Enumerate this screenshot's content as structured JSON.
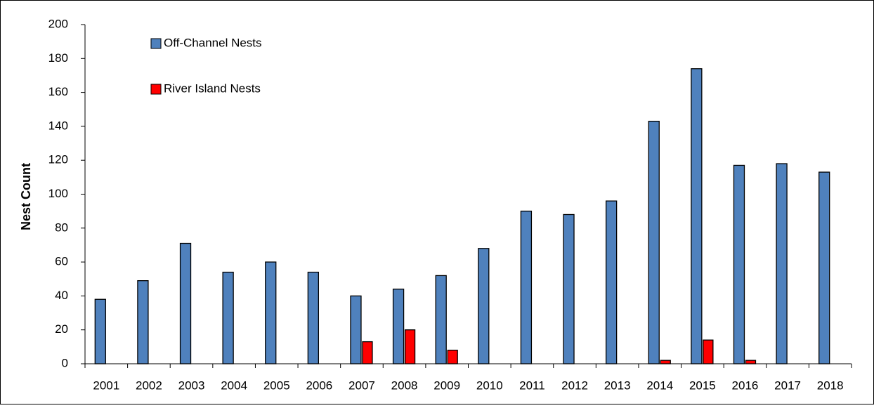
{
  "chart_data": {
    "type": "bar",
    "y_label": "Nest Count",
    "categories": [
      "2001",
      "2002",
      "2003",
      "2004",
      "2005",
      "2006",
      "2007",
      "2008",
      "2009",
      "2010",
      "2011",
      "2012",
      "2013",
      "2014",
      "2015",
      "2016",
      "2017",
      "2018"
    ],
    "series": [
      {
        "name": "Off-Channel Nests",
        "color": "#4f81bd",
        "values": [
          38,
          49,
          71,
          54,
          60,
          54,
          40,
          44,
          52,
          68,
          90,
          88,
          96,
          143,
          174,
          117,
          118,
          113
        ]
      },
      {
        "name": "River Island Nests",
        "color": "#ff0000",
        "values": [
          0,
          0,
          0,
          0,
          0,
          0,
          13,
          20,
          8,
          0,
          0,
          0,
          0,
          2,
          14,
          2,
          0,
          0
        ]
      }
    ],
    "ylim": [
      0,
      200
    ],
    "yticks": [
      0,
      20,
      40,
      60,
      80,
      100,
      120,
      140,
      160,
      180,
      200
    ],
    "legend": "upper left"
  }
}
